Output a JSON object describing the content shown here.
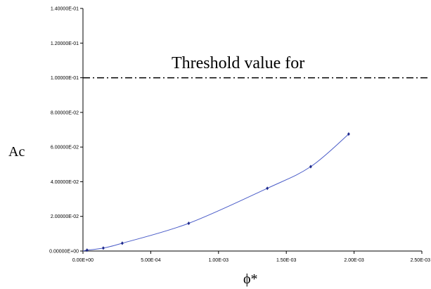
{
  "chart_data": {
    "type": "scatter",
    "title": "",
    "xlabel": "ϕ*",
    "ylabel": "Ac",
    "xlim": [
      0,
      0.0025
    ],
    "ylim": [
      0,
      0.14
    ],
    "x_ticks": [
      0,
      0.0005,
      0.001,
      0.0015,
      0.002,
      0.0025
    ],
    "x_tick_labels": [
      "0.00E+00",
      "5.00E-04",
      "1.00E-03",
      "1.50E-03",
      "2.00E-03",
      "2.50E-03"
    ],
    "y_ticks": [
      0,
      0.02,
      0.04,
      0.06,
      0.08,
      0.1,
      0.12,
      0.14
    ],
    "y_tick_labels": [
      "0.00000E+00",
      "2.00000E-02",
      "4.00000E-02",
      "6.00000E-02",
      "8.00000E-02",
      "1.00000E-01",
      "1.20000E-01",
      "1.40000E-01"
    ],
    "grid": false,
    "legend": "none",
    "series": [
      {
        "x": [
          3e-05,
          0.00015,
          0.00029,
          0.00078,
          0.00136,
          0.00168,
          0.00196
        ],
        "y": [
          0.0005,
          0.0017,
          0.0045,
          0.016,
          0.0362,
          0.0487,
          0.0675
        ],
        "marker_color": "#1f2a8c",
        "line_color": "#4a5cc8"
      }
    ],
    "threshold": {
      "y": 0.1,
      "label": "Threshold value for",
      "style": "dash-dot",
      "color": "#000000"
    }
  }
}
